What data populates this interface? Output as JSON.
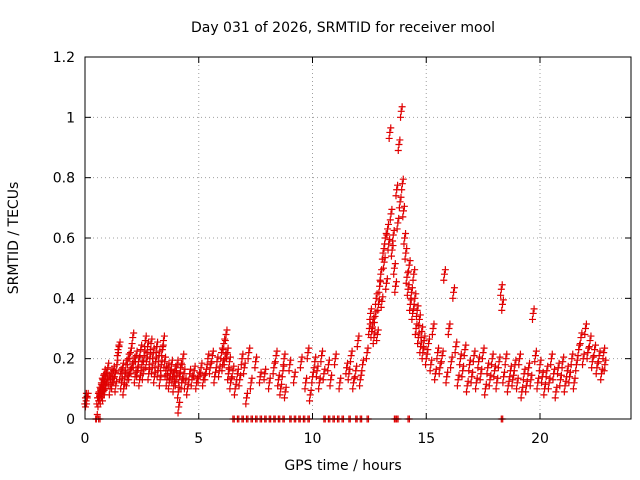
{
  "chart_data": {
    "type": "scatter",
    "title": "Day 031 of 2026, SRMTID for receiver mool",
    "xlabel": "GPS time / hours",
    "ylabel": "SRMTID / TECUs",
    "xlim": [
      0,
      24
    ],
    "ylim": [
      0,
      1.2
    ],
    "xticks": [
      0,
      5,
      10,
      15,
      20
    ],
    "xtick_labels": [
      "0",
      "5",
      "10",
      "15",
      "20"
    ],
    "yticks": [
      0,
      0.2,
      0.4,
      0.6,
      0.8,
      1.0,
      1.2
    ],
    "ytick_labels": [
      "0",
      "0.2",
      "0.4",
      "0.6",
      "0.8",
      "1",
      "1.2"
    ],
    "grid": true,
    "marker": "+",
    "colors": {
      "series": "#e00000",
      "grid": "#a0a0a0",
      "axis": "#000000"
    },
    "series": [
      {
        "name": "SRMTID",
        "points": [
          [
            0.02,
            0.07
          ],
          [
            0.05,
            0.06
          ],
          [
            0.1,
            0.07
          ],
          [
            0.5,
            0.0
          ],
          [
            0.55,
            0.07
          ],
          [
            0.6,
            0.06
          ],
          [
            0.62,
            0.09
          ],
          [
            0.65,
            0.08
          ],
          [
            0.68,
            0.1
          ],
          [
            0.7,
            0.07
          ],
          [
            0.72,
            0.12
          ],
          [
            0.75,
            0.09
          ],
          [
            0.78,
            0.13
          ],
          [
            0.8,
            0.08
          ],
          [
            0.82,
            0.11
          ],
          [
            0.85,
            0.15
          ],
          [
            0.88,
            0.1
          ],
          [
            0.9,
            0.14
          ],
          [
            0.95,
            0.12
          ],
          [
            1.0,
            0.17
          ],
          [
            1.05,
            0.13
          ],
          [
            1.1,
            0.1
          ],
          [
            1.15,
            0.15
          ],
          [
            1.2,
            0.12
          ],
          [
            1.25,
            0.16
          ],
          [
            1.3,
            0.14
          ],
          [
            1.35,
            0.11
          ],
          [
            1.4,
            0.18
          ],
          [
            1.45,
            0.23
          ],
          [
            1.5,
            0.24
          ],
          [
            1.55,
            0.15
          ],
          [
            1.6,
            0.12
          ],
          [
            1.65,
            0.17
          ],
          [
            1.7,
            0.1
          ],
          [
            1.75,
            0.14
          ],
          [
            1.8,
            0.18
          ],
          [
            1.85,
            0.13
          ],
          [
            1.9,
            0.2
          ],
          [
            1.95,
            0.15
          ],
          [
            2.0,
            0.22
          ],
          [
            2.05,
            0.17
          ],
          [
            2.1,
            0.27
          ],
          [
            2.15,
            0.19
          ],
          [
            2.2,
            0.14
          ],
          [
            2.25,
            0.21
          ],
          [
            2.3,
            0.16
          ],
          [
            2.35,
            0.19
          ],
          [
            2.4,
            0.13
          ],
          [
            2.45,
            0.23
          ],
          [
            2.5,
            0.18
          ],
          [
            2.55,
            0.15
          ],
          [
            2.6,
            0.21
          ],
          [
            2.65,
            0.26
          ],
          [
            2.7,
            0.19
          ],
          [
            2.75,
            0.24
          ],
          [
            2.8,
            0.15
          ],
          [
            2.85,
            0.2
          ],
          [
            2.9,
            0.25
          ],
          [
            2.95,
            0.17
          ],
          [
            3.0,
            0.22
          ],
          [
            3.05,
            0.14
          ],
          [
            3.1,
            0.19
          ],
          [
            3.15,
            0.24
          ],
          [
            3.2,
            0.16
          ],
          [
            3.25,
            0.21
          ],
          [
            3.3,
            0.13
          ],
          [
            3.35,
            0.18
          ],
          [
            3.4,
            0.23
          ],
          [
            3.45,
            0.26
          ],
          [
            3.5,
            0.19
          ],
          [
            3.55,
            0.16
          ],
          [
            3.6,
            0.13
          ],
          [
            3.65,
            0.17
          ],
          [
            3.7,
            0.12
          ],
          [
            3.75,
            0.15
          ],
          [
            3.8,
            0.18
          ],
          [
            3.85,
            0.14
          ],
          [
            3.9,
            0.11
          ],
          [
            3.95,
            0.16
          ],
          [
            4.0,
            0.13
          ],
          [
            4.05,
            0.18
          ],
          [
            4.1,
            0.09
          ],
          [
            4.12,
            0.04
          ],
          [
            4.15,
            0.14
          ],
          [
            4.2,
            0.17
          ],
          [
            4.25,
            0.12
          ],
          [
            4.3,
            0.2
          ],
          [
            4.35,
            0.15
          ],
          [
            4.4,
            0.12
          ],
          [
            4.5,
            0.1
          ],
          [
            4.6,
            0.15
          ],
          [
            4.7,
            0.13
          ],
          [
            4.8,
            0.16
          ],
          [
            4.9,
            0.12
          ],
          [
            5.0,
            0.14
          ],
          [
            5.1,
            0.17
          ],
          [
            5.2,
            0.13
          ],
          [
            5.3,
            0.15
          ],
          [
            5.4,
            0.2
          ],
          [
            5.5,
            0.17
          ],
          [
            5.6,
            0.21
          ],
          [
            5.7,
            0.14
          ],
          [
            5.8,
            0.19
          ],
          [
            5.9,
            0.16
          ],
          [
            6.0,
            0.22
          ],
          [
            6.05,
            0.18
          ],
          [
            6.1,
            0.25
          ],
          [
            6.15,
            0.2
          ],
          [
            6.2,
            0.28
          ],
          [
            6.25,
            0.22
          ],
          [
            6.3,
            0.15
          ],
          [
            6.35,
            0.19
          ],
          [
            6.4,
            0.12
          ],
          [
            6.5,
            0.16
          ],
          [
            6.6,
            0.1
          ],
          [
            6.7,
            0.15
          ],
          [
            6.8,
            0.13
          ],
          [
            6.9,
            0.2
          ],
          [
            7.0,
            0.17
          ],
          [
            7.1,
            0.07
          ],
          [
            7.2,
            0.22
          ],
          [
            7.3,
            0.12
          ],
          [
            7.5,
            0.19
          ],
          [
            7.7,
            0.14
          ],
          [
            7.9,
            0.15
          ],
          [
            8.1,
            0.12
          ],
          [
            8.3,
            0.17
          ],
          [
            8.4,
            0.21
          ],
          [
            8.5,
            0.13
          ],
          [
            8.6,
            0.1
          ],
          [
            8.7,
            0.16
          ],
          [
            8.75,
            0.2
          ],
          [
            8.8,
            0.09
          ],
          [
            9.0,
            0.18
          ],
          [
            9.2,
            0.14
          ],
          [
            9.5,
            0.19
          ],
          [
            9.7,
            0.12
          ],
          [
            9.8,
            0.22
          ],
          [
            9.9,
            0.08
          ],
          [
            10.0,
            0.14
          ],
          [
            10.1,
            0.19
          ],
          [
            10.2,
            0.16
          ],
          [
            10.3,
            0.12
          ],
          [
            10.4,
            0.21
          ],
          [
            10.5,
            0.15
          ],
          [
            10.7,
            0.18
          ],
          [
            10.8,
            0.13
          ],
          [
            11.0,
            0.2
          ],
          [
            11.2,
            0.12
          ],
          [
            11.5,
            0.17
          ],
          [
            11.6,
            0.15
          ],
          [
            11.7,
            0.21
          ],
          [
            11.8,
            0.12
          ],
          [
            11.9,
            0.16
          ],
          [
            12.0,
            0.26
          ],
          [
            12.1,
            0.13
          ],
          [
            12.2,
            0.18
          ],
          [
            12.4,
            0.22
          ],
          [
            12.5,
            0.3
          ],
          [
            12.55,
            0.35
          ],
          [
            12.6,
            0.29
          ],
          [
            12.65,
            0.32
          ],
          [
            12.7,
            0.27
          ],
          [
            12.75,
            0.34
          ],
          [
            12.8,
            0.4
          ],
          [
            12.85,
            0.28
          ],
          [
            12.9,
            0.38
          ],
          [
            12.95,
            0.44
          ],
          [
            13.0,
            0.48
          ],
          [
            13.05,
            0.39
          ],
          [
            13.1,
            0.55
          ],
          [
            13.15,
            0.52
          ],
          [
            13.2,
            0.6
          ],
          [
            13.25,
            0.45
          ],
          [
            13.3,
            0.63
          ],
          [
            13.35,
            0.58
          ],
          [
            13.4,
            0.95
          ],
          [
            13.45,
            0.68
          ],
          [
            13.5,
            0.56
          ],
          [
            13.55,
            0.61
          ],
          [
            13.6,
            0.5
          ],
          [
            13.65,
            0.44
          ],
          [
            13.7,
            0.76
          ],
          [
            13.75,
            0.65
          ],
          [
            13.8,
            0.91
          ],
          [
            13.85,
            0.72
          ],
          [
            13.9,
            1.02
          ],
          [
            13.95,
            0.78
          ],
          [
            14.0,
            0.69
          ],
          [
            14.05,
            0.6
          ],
          [
            14.1,
            0.55
          ],
          [
            14.15,
            0.47
          ],
          [
            14.2,
            0.43
          ],
          [
            14.25,
            0.51
          ],
          [
            14.3,
            0.38
          ],
          [
            14.35,
            0.42
          ],
          [
            14.4,
            0.35
          ],
          [
            14.45,
            0.48
          ],
          [
            14.5,
            0.4
          ],
          [
            14.55,
            0.3
          ],
          [
            14.6,
            0.36
          ],
          [
            14.65,
            0.27
          ],
          [
            14.7,
            0.33
          ],
          [
            14.75,
            0.24
          ],
          [
            14.8,
            0.29
          ],
          [
            14.85,
            0.22
          ],
          [
            14.9,
            0.26
          ],
          [
            15.0,
            0.2
          ],
          [
            15.1,
            0.25
          ],
          [
            15.2,
            0.18
          ],
          [
            15.3,
            0.3
          ],
          [
            15.4,
            0.15
          ],
          [
            15.5,
            0.22
          ],
          [
            15.6,
            0.17
          ],
          [
            15.7,
            0.21
          ],
          [
            15.8,
            0.48
          ],
          [
            15.9,
            0.14
          ],
          [
            16.0,
            0.3
          ],
          [
            16.1,
            0.19
          ],
          [
            16.2,
            0.42
          ],
          [
            16.3,
            0.24
          ],
          [
            16.4,
            0.13
          ],
          [
            16.5,
            0.2
          ],
          [
            16.6,
            0.16
          ],
          [
            16.7,
            0.23
          ],
          [
            16.8,
            0.11
          ],
          [
            16.9,
            0.18
          ],
          [
            17.0,
            0.14
          ],
          [
            17.1,
            0.21
          ],
          [
            17.2,
            0.12
          ],
          [
            17.3,
            0.19
          ],
          [
            17.4,
            0.15
          ],
          [
            17.5,
            0.22
          ],
          [
            17.6,
            0.1
          ],
          [
            17.7,
            0.17
          ],
          [
            17.8,
            0.13
          ],
          [
            17.9,
            0.2
          ],
          [
            18.0,
            0.16
          ],
          [
            18.1,
            0.12
          ],
          [
            18.2,
            0.19
          ],
          [
            18.3,
            0.43
          ],
          [
            18.35,
            0.38
          ],
          [
            18.4,
            0.14
          ],
          [
            18.5,
            0.2
          ],
          [
            18.6,
            0.11
          ],
          [
            18.7,
            0.16
          ],
          [
            18.8,
            0.13
          ],
          [
            18.9,
            0.18
          ],
          [
            19.0,
            0.12
          ],
          [
            19.1,
            0.2
          ],
          [
            19.2,
            0.09
          ],
          [
            19.3,
            0.15
          ],
          [
            19.4,
            0.11
          ],
          [
            19.5,
            0.17
          ],
          [
            19.6,
            0.13
          ],
          [
            19.7,
            0.35
          ],
          [
            19.8,
            0.21
          ],
          [
            19.9,
            0.12
          ],
          [
            20.0,
            0.18
          ],
          [
            20.1,
            0.14
          ],
          [
            20.2,
            0.1
          ],
          [
            20.3,
            0.16
          ],
          [
            20.4,
            0.12
          ],
          [
            20.5,
            0.2
          ],
          [
            20.6,
            0.15
          ],
          [
            20.7,
            0.09
          ],
          [
            20.8,
            0.17
          ],
          [
            20.9,
            0.13
          ],
          [
            21.0,
            0.19
          ],
          [
            21.1,
            0.11
          ],
          [
            21.2,
            0.16
          ],
          [
            21.3,
            0.14
          ],
          [
            21.4,
            0.2
          ],
          [
            21.5,
            0.12
          ],
          [
            21.6,
            0.18
          ],
          [
            21.7,
            0.23
          ],
          [
            21.8,
            0.27
          ],
          [
            21.9,
            0.2
          ],
          [
            22.0,
            0.3
          ],
          [
            22.1,
            0.22
          ],
          [
            22.2,
            0.26
          ],
          [
            22.3,
            0.19
          ],
          [
            22.4,
            0.23
          ],
          [
            22.5,
            0.17
          ],
          [
            22.6,
            0.21
          ],
          [
            22.7,
            0.15
          ],
          [
            22.8,
            0.22
          ],
          [
            22.85,
            0.18
          ]
        ]
      }
    ],
    "zero_points_x": [
      0.6,
      6.5,
      6.7,
      6.9,
      7.1,
      7.3,
      7.5,
      7.7,
      7.9,
      8.1,
      8.3,
      8.5,
      8.7,
      9.0,
      9.2,
      9.4,
      9.6,
      9.8,
      10.5,
      10.7,
      10.9,
      11.1,
      11.3,
      11.6,
      11.9,
      12.1,
      12.4,
      13.6,
      13.7,
      14.2,
      18.3
    ]
  }
}
